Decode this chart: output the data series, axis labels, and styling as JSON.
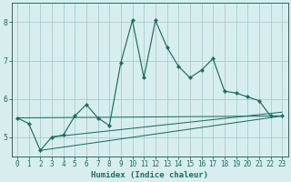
{
  "xlabel": "Humidex (Indice chaleur)",
  "xlim": [
    -0.5,
    23.5
  ],
  "ylim": [
    4.5,
    8.5
  ],
  "yticks": [
    5,
    6,
    7,
    8
  ],
  "xticks": [
    0,
    1,
    2,
    3,
    4,
    5,
    6,
    7,
    8,
    9,
    10,
    11,
    12,
    13,
    14,
    15,
    16,
    17,
    18,
    19,
    20,
    21,
    22,
    23
  ],
  "background_color": "#d8eeee",
  "grid_color": "#a8cccc",
  "line_color": "#1e6e5e",
  "main_line": {
    "x": [
      0,
      1,
      2,
      3,
      4,
      5,
      6,
      7,
      8,
      9,
      10,
      11,
      12,
      13,
      14,
      15,
      16,
      17,
      18,
      19,
      20,
      21,
      22,
      23
    ],
    "y": [
      5.5,
      5.35,
      4.65,
      5.0,
      5.05,
      5.55,
      5.85,
      5.5,
      5.3,
      6.95,
      8.05,
      6.55,
      8.05,
      7.35,
      6.85,
      6.55,
      6.75,
      7.05,
      6.2,
      6.15,
      6.05,
      5.95,
      5.55,
      5.55
    ]
  },
  "trend_lines": [
    {
      "x0": 0,
      "y0": 5.5,
      "x1": 23,
      "y1": 5.55
    },
    {
      "x0": 2,
      "y0": 4.65,
      "x1": 23,
      "y1": 5.55
    },
    {
      "x0": 3,
      "y0": 5.0,
      "x1": 23,
      "y1": 5.65
    }
  ]
}
